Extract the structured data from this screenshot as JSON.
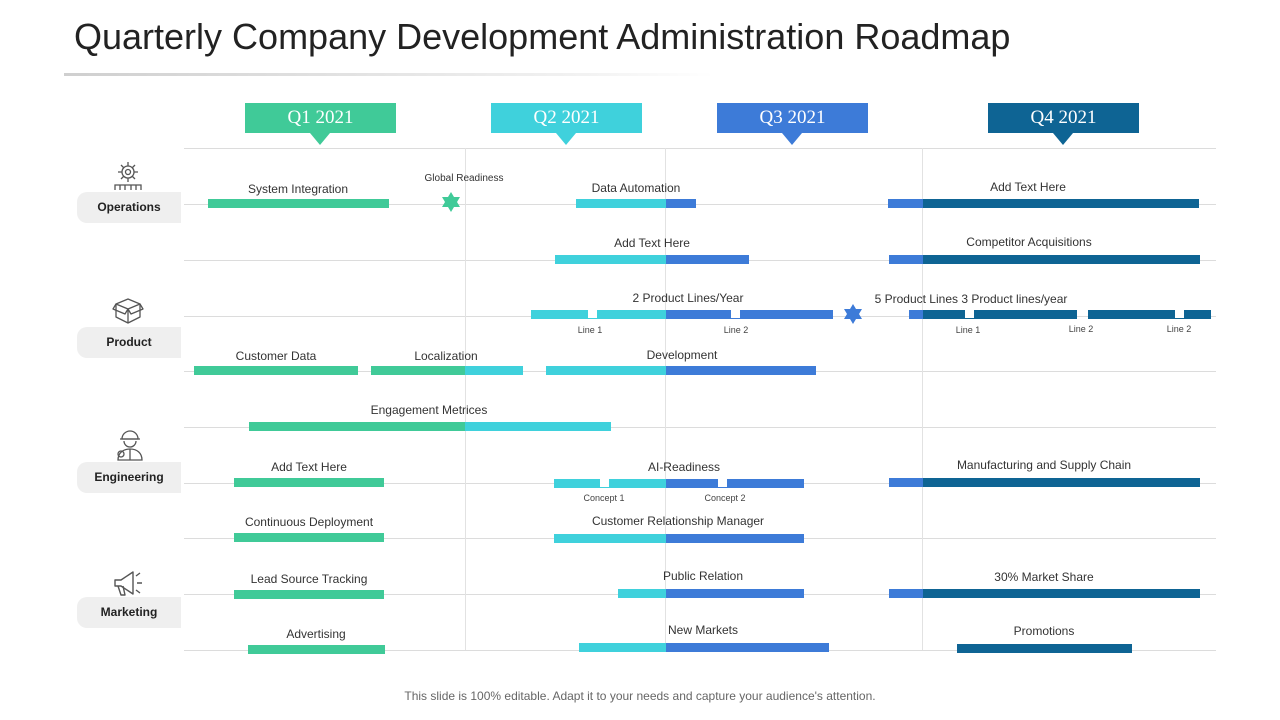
{
  "title": "Quarterly Company Development Administration Roadmap",
  "colors": {
    "green": "#40ca98",
    "cyan": "#3fd1dc",
    "blue": "#3d7bd8",
    "navy": "#0e6494"
  },
  "quarters": [
    {
      "label": "Q1 2021",
      "color": "#40ca98"
    },
    {
      "label": "Q2 2021",
      "color": "#3fd1dc"
    },
    {
      "label": "Q3 2021",
      "color": "#3d7bd8"
    },
    {
      "label": "Q4 2021",
      "color": "#0e6494"
    }
  ],
  "departments": [
    {
      "label": "Operations",
      "icon": "gear-icon"
    },
    {
      "label": "Product",
      "icon": "box-icon"
    },
    {
      "label": "Engineering",
      "icon": "engineer-icon"
    },
    {
      "label": "Marketing",
      "icon": "megaphone-icon"
    }
  ],
  "tasks": {
    "system_integration": "System Integration",
    "global_readiness": "Global Readiness",
    "data_automation": "Data Automation",
    "add_text_here_1": "Add Text Here",
    "add_text_here_2": "Add Text Here",
    "competitor_acquisitions": "Competitor Acquisitions",
    "product_lines_year": "2 Product Lines/Year",
    "line1_a": "Line 1",
    "line2_a": "Line 2",
    "five_product_lines": "5 Product Lines 3 Product lines/year",
    "line1_b": "Line 1",
    "line2_b": "Line 2",
    "line2_c": "Line 2",
    "customer_data": "Customer Data",
    "localization": "Localization",
    "development": "Development",
    "engagement_metrices": "Engagement Metrices",
    "add_text_here_3": "Add Text Here",
    "ai_readiness": "AI-Readiness",
    "concept1": "Concept 1",
    "concept2": "Concept 2",
    "manufacturing": "Manufacturing and Supply Chain",
    "continuous_deployment": "Continuous Deployment",
    "crm": "Customer Relationship Manager",
    "lead_source": "Lead Source Tracking",
    "public_relation": "Public Relation",
    "market_share": "30% Market Share",
    "advertising": "Advertising",
    "new_markets": "New Markets",
    "promotions": "Promotions"
  },
  "footer": "This slide is 100% editable. Adapt it to your needs and capture your audience's attention."
}
